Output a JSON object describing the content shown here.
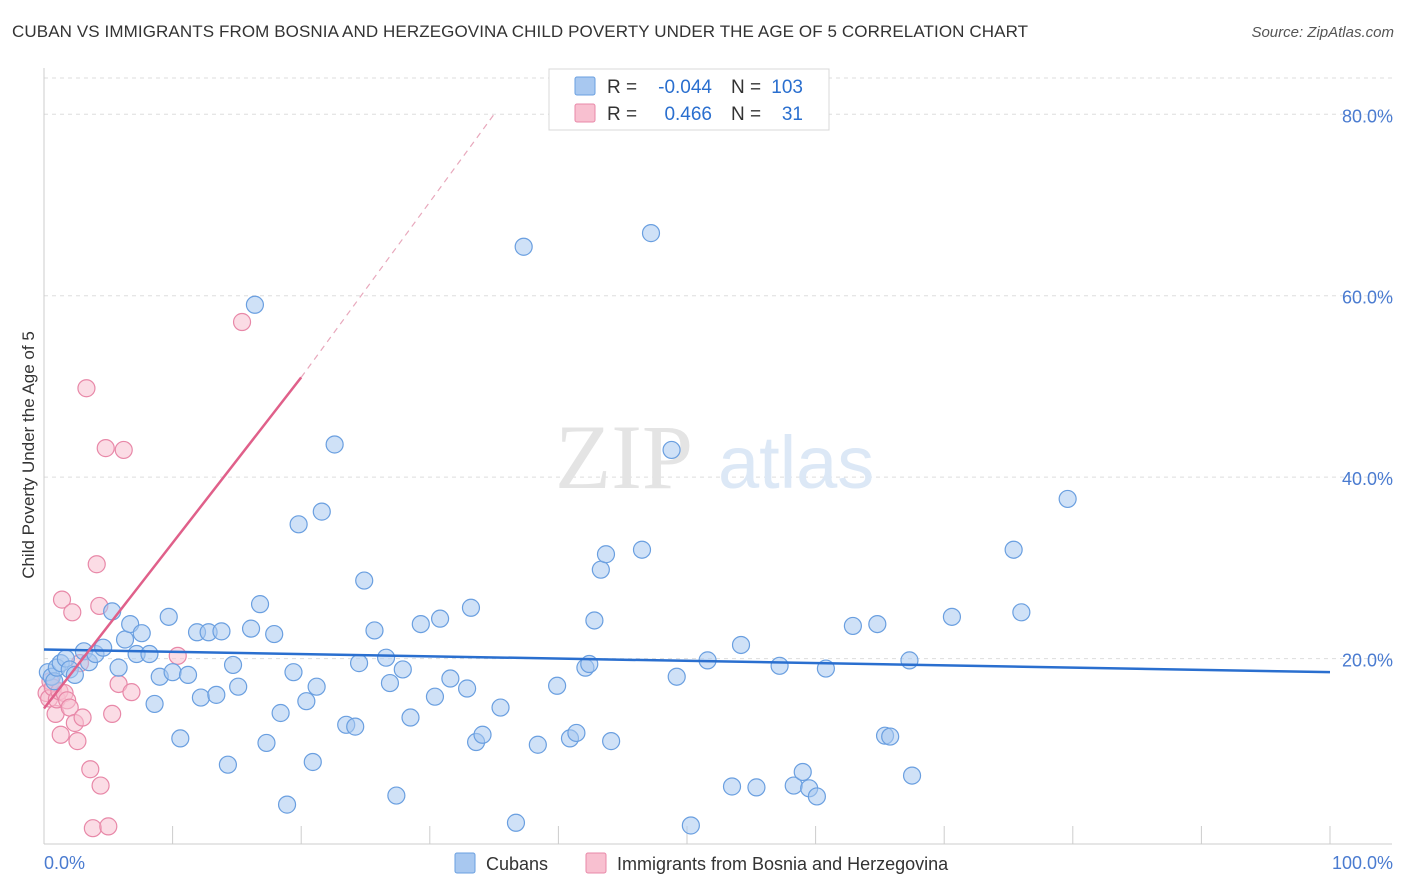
{
  "title": "CUBAN VS IMMIGRANTS FROM BOSNIA AND HERZEGOVINA CHILD POVERTY UNDER THE AGE OF 5 CORRELATION CHART",
  "source": "Source: ZipAtlas.com",
  "watermark": {
    "zip": "ZIP",
    "atlas": "atlas"
  },
  "colors": {
    "cubans_fill": "#a8c8f0",
    "cubans_stroke": "#6a9fe0",
    "cubans_line": "#2a6fcf",
    "bosnia_fill": "#f8c0d0",
    "bosnia_stroke": "#e888a8",
    "bosnia_line": "#e0608a",
    "tick_label": "#4a7bd0",
    "grid": "#dddddd"
  },
  "legend": {
    "rows": [
      {
        "r_label": "R =",
        "r_value": "-0.044",
        "n_label": "N =",
        "n_value": "103"
      },
      {
        "r_label": "R =",
        "r_value": "0.466",
        "n_label": "N =",
        "n_value": "31"
      }
    ]
  },
  "chart_data": {
    "type": "scatter",
    "title": "CUBAN VS IMMIGRANTS FROM BOSNIA AND HERZEGOVINA CHILD POVERTY UNDER THE AGE OF 5 CORRELATION CHART",
    "xlabel": "",
    "ylabel": "Child Poverty Under the Age of 5",
    "xlim": [
      0,
      100
    ],
    "ylim": [
      0,
      84
    ],
    "x_tick_labels": [
      "0.0%",
      "100.0%"
    ],
    "y_ticks": [
      20,
      40,
      60,
      80
    ],
    "y_tick_labels": [
      "20.0%",
      "40.0%",
      "60.0%",
      "80.0%"
    ],
    "grid": true,
    "legend_position": "bottom",
    "series": [
      {
        "name": "Cubans",
        "R": -0.044,
        "N": 103,
        "trend": {
          "x": [
            0,
            100
          ],
          "y": [
            21.0,
            18.5
          ]
        },
        "points": [
          [
            0.3,
            18.5
          ],
          [
            0.6,
            18.0
          ],
          [
            0.8,
            17.5
          ],
          [
            1.0,
            19.0
          ],
          [
            1.3,
            19.5
          ],
          [
            1.7,
            20.0
          ],
          [
            2.0,
            18.8
          ],
          [
            2.4,
            18.2
          ],
          [
            3.1,
            20.8
          ],
          [
            3.5,
            19.6
          ],
          [
            4.0,
            20.5
          ],
          [
            4.6,
            21.2
          ],
          [
            5.3,
            25.2
          ],
          [
            5.8,
            19.0
          ],
          [
            6.3,
            22.1
          ],
          [
            6.7,
            23.8
          ],
          [
            7.2,
            20.5
          ],
          [
            7.6,
            22.8
          ],
          [
            8.2,
            20.5
          ],
          [
            8.6,
            15.0
          ],
          [
            9.0,
            18.0
          ],
          [
            9.7,
            24.6
          ],
          [
            10.0,
            18.5
          ],
          [
            10.6,
            11.2
          ],
          [
            11.2,
            18.2
          ],
          [
            11.9,
            22.9
          ],
          [
            12.2,
            15.7
          ],
          [
            12.8,
            22.9
          ],
          [
            13.4,
            16.0
          ],
          [
            13.8,
            23.0
          ],
          [
            14.3,
            8.3
          ],
          [
            14.7,
            19.3
          ],
          [
            15.1,
            16.9
          ],
          [
            16.1,
            23.3
          ],
          [
            16.4,
            59.0
          ],
          [
            16.8,
            26.0
          ],
          [
            17.3,
            10.7
          ],
          [
            17.9,
            22.7
          ],
          [
            18.4,
            14.0
          ],
          [
            18.9,
            3.9
          ],
          [
            19.4,
            18.5
          ],
          [
            19.8,
            34.8
          ],
          [
            20.4,
            15.3
          ],
          [
            20.9,
            8.6
          ],
          [
            21.2,
            16.9
          ],
          [
            21.6,
            36.2
          ],
          [
            22.6,
            43.6
          ],
          [
            23.5,
            12.7
          ],
          [
            24.2,
            12.5
          ],
          [
            24.5,
            19.5
          ],
          [
            24.9,
            28.6
          ],
          [
            25.7,
            23.1
          ],
          [
            26.6,
            20.1
          ],
          [
            26.9,
            17.3
          ],
          [
            27.4,
            4.9
          ],
          [
            27.9,
            18.8
          ],
          [
            28.5,
            13.5
          ],
          [
            29.3,
            23.8
          ],
          [
            30.4,
            15.8
          ],
          [
            30.8,
            24.4
          ],
          [
            31.6,
            17.8
          ],
          [
            32.9,
            16.7
          ],
          [
            33.2,
            25.6
          ],
          [
            33.6,
            10.8
          ],
          [
            34.1,
            11.6
          ],
          [
            35.5,
            14.6
          ],
          [
            36.7,
            1.9
          ],
          [
            37.3,
            65.4
          ],
          [
            38.4,
            10.5
          ],
          [
            39.9,
            17.0
          ],
          [
            40.9,
            11.2
          ],
          [
            41.4,
            11.8
          ],
          [
            42.1,
            19.0
          ],
          [
            42.4,
            19.4
          ],
          [
            42.8,
            24.2
          ],
          [
            43.3,
            29.8
          ],
          [
            43.7,
            31.5
          ],
          [
            44.1,
            10.9
          ],
          [
            46.5,
            32.0
          ],
          [
            47.2,
            66.9
          ],
          [
            48.8,
            43.0
          ],
          [
            49.2,
            18.0
          ],
          [
            50.3,
            1.6
          ],
          [
            51.6,
            19.8
          ],
          [
            53.5,
            5.9
          ],
          [
            54.2,
            21.5
          ],
          [
            55.4,
            5.8
          ],
          [
            57.2,
            19.2
          ],
          [
            58.3,
            6.0
          ],
          [
            59.0,
            7.5
          ],
          [
            59.5,
            5.7
          ],
          [
            60.1,
            4.8
          ],
          [
            60.8,
            18.9
          ],
          [
            62.9,
            23.6
          ],
          [
            64.8,
            23.8
          ],
          [
            65.4,
            11.5
          ],
          [
            65.8,
            11.4
          ],
          [
            67.3,
            19.8
          ],
          [
            67.5,
            7.1
          ],
          [
            70.6,
            24.6
          ],
          [
            75.4,
            32.0
          ],
          [
            76.0,
            25.1
          ],
          [
            79.6,
            37.6
          ]
        ]
      },
      {
        "name": "Immigrants from Bosnia and Herzegovina",
        "R": 0.466,
        "N": 31,
        "trend": {
          "x": [
            0,
            20
          ],
          "y": [
            14.5,
            51.0
          ]
        },
        "trend_dashed_extension": {
          "x": [
            20,
            35
          ],
          "y": [
            51.0,
            80.0
          ]
        },
        "points": [
          [
            0.2,
            16.2
          ],
          [
            0.4,
            15.6
          ],
          [
            0.5,
            17.5
          ],
          [
            0.7,
            16.8
          ],
          [
            0.9,
            13.9
          ],
          [
            1.0,
            15.5
          ],
          [
            1.2,
            16.4
          ],
          [
            1.3,
            11.6
          ],
          [
            1.4,
            26.5
          ],
          [
            1.6,
            16.2
          ],
          [
            1.8,
            15.4
          ],
          [
            2.0,
            14.6
          ],
          [
            2.2,
            25.1
          ],
          [
            2.4,
            12.9
          ],
          [
            2.6,
            10.9
          ],
          [
            2.8,
            19.5
          ],
          [
            3.0,
            13.5
          ],
          [
            3.3,
            49.8
          ],
          [
            3.6,
            7.8
          ],
          [
            3.8,
            1.3
          ],
          [
            4.1,
            30.4
          ],
          [
            4.3,
            25.8
          ],
          [
            4.4,
            6.0
          ],
          [
            4.8,
            43.2
          ],
          [
            5.0,
            1.5
          ],
          [
            5.3,
            13.9
          ],
          [
            5.8,
            17.2
          ],
          [
            6.2,
            43.0
          ],
          [
            6.8,
            16.3
          ],
          [
            10.4,
            20.3
          ],
          [
            15.4,
            57.1
          ]
        ]
      }
    ]
  },
  "bottom_legend": [
    {
      "label": "Cubans"
    },
    {
      "label": "Immigrants from Bosnia and Herzegovina"
    }
  ]
}
